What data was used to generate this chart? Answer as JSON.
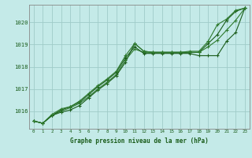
{
  "background_color": "#c4eae8",
  "grid_color": "#a0ccc8",
  "line_color_1": "#1a5c1a",
  "line_color_2": "#2e7a2e",
  "xlabel": "Graphe pression niveau de la mer (hPa)",
  "ylim": [
    1015.2,
    1020.8
  ],
  "xlim": [
    -0.5,
    23.5
  ],
  "yticks": [
    1016,
    1017,
    1018,
    1019,
    1020
  ],
  "xticks": [
    0,
    1,
    2,
    3,
    4,
    5,
    6,
    7,
    8,
    9,
    10,
    11,
    12,
    13,
    14,
    15,
    16,
    17,
    18,
    19,
    20,
    21,
    22,
    23
  ],
  "series": [
    {
      "y": [
        1015.55,
        1015.45,
        1015.8,
        1015.95,
        1016.05,
        1016.25,
        1016.6,
        1016.95,
        1017.25,
        1017.6,
        1018.2,
        1019.05,
        1018.7,
        1018.65,
        1018.65,
        1018.65,
        1018.65,
        1018.65,
        1018.65,
        1019.05,
        1019.45,
        1020.1,
        1020.5,
        1020.65
      ],
      "color": "#1a5c1a"
    },
    {
      "y": [
        1015.55,
        1015.45,
        1015.8,
        1016.0,
        1016.15,
        1016.35,
        1016.65,
        1017.0,
        1017.3,
        1017.65,
        1018.3,
        1018.8,
        1018.65,
        1018.65,
        1018.65,
        1018.65,
        1018.65,
        1018.65,
        1018.65,
        1018.9,
        1019.2,
        1019.65,
        1020.1,
        1020.65
      ],
      "color": "#2e7a2e"
    },
    {
      "y": [
        1015.55,
        1015.45,
        1015.8,
        1016.05,
        1016.2,
        1016.4,
        1016.75,
        1017.1,
        1017.4,
        1017.75,
        1018.4,
        1018.9,
        1018.6,
        1018.6,
        1018.6,
        1018.6,
        1018.6,
        1018.6,
        1018.5,
        1018.5,
        1018.5,
        1019.15,
        1019.55,
        1020.65
      ],
      "color": "#1a5c1a"
    },
    {
      "y": [
        1015.55,
        1015.45,
        1015.85,
        1016.1,
        1016.2,
        1016.45,
        1016.8,
        1017.15,
        1017.45,
        1017.8,
        1018.5,
        1019.05,
        1018.7,
        1018.65,
        1018.65,
        1018.65,
        1018.65,
        1018.7,
        1018.7,
        1019.15,
        1019.9,
        1020.15,
        1020.55,
        1020.65
      ],
      "color": "#2e7a2e"
    }
  ],
  "spine_color": "#888888",
  "tick_label_color": "#1a5c1a",
  "xlabel_color": "#1a5c1a"
}
